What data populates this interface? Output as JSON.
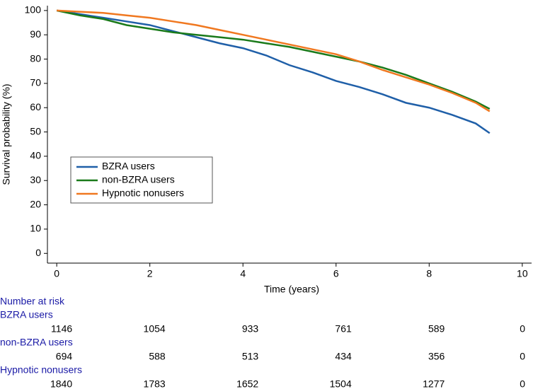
{
  "chart_data": {
    "type": "line",
    "x_label": "Time (years)",
    "y_label": "Survival probability (%)",
    "x": [
      0,
      0.5,
      1,
      1.5,
      2,
      2.5,
      3,
      3.5,
      4,
      4.5,
      5,
      5.5,
      6,
      6.5,
      7,
      7.5,
      8,
      8.5,
      9,
      9.3
    ],
    "series": [
      {
        "name": "BZRA users",
        "color": "#1f5fa8",
        "values": [
          100,
          98.5,
          97,
          95.5,
          94,
          91.5,
          89,
          86.5,
          84.5,
          81.5,
          77.5,
          74.5,
          71,
          68.5,
          65.5,
          62,
          60,
          57,
          53.5,
          49.5
        ]
      },
      {
        "name": "non-BZRA users",
        "color": "#1a7a1a",
        "values": [
          100,
          98,
          96.5,
          94,
          92.5,
          91,
          90,
          89,
          88,
          86.5,
          85,
          83,
          81,
          79,
          76.5,
          73.5,
          70,
          66.5,
          62.5,
          59.5
        ]
      },
      {
        "name": "Hypnotic nonusers",
        "color": "#f07820",
        "values": [
          100,
          99.5,
          99,
          98,
          97,
          95.5,
          94,
          92,
          90,
          88,
          86,
          84,
          82,
          79,
          75.5,
          72.5,
          69.5,
          66,
          62,
          58.5
        ]
      }
    ],
    "xlim": [
      -0.2,
      10.2
    ],
    "xticks": [
      0,
      2,
      4,
      6,
      8,
      10
    ],
    "ylim": [
      -4,
      102
    ],
    "yticks": [
      0,
      10,
      20,
      30,
      40,
      50,
      60,
      70,
      80,
      90,
      100
    ],
    "legend": "lower-left",
    "risk_table": {
      "title": "Number at risk",
      "groups": [
        {
          "name": "BZRA users",
          "counts": [
            1146,
            1054,
            933,
            761,
            589,
            0
          ]
        },
        {
          "name": "non-BZRA users",
          "counts": [
            694,
            588,
            513,
            434,
            356,
            0
          ]
        },
        {
          "name": "Hypnotic nonusers",
          "counts": [
            1840,
            1783,
            1652,
            1504,
            1277,
            0
          ]
        }
      ]
    }
  }
}
